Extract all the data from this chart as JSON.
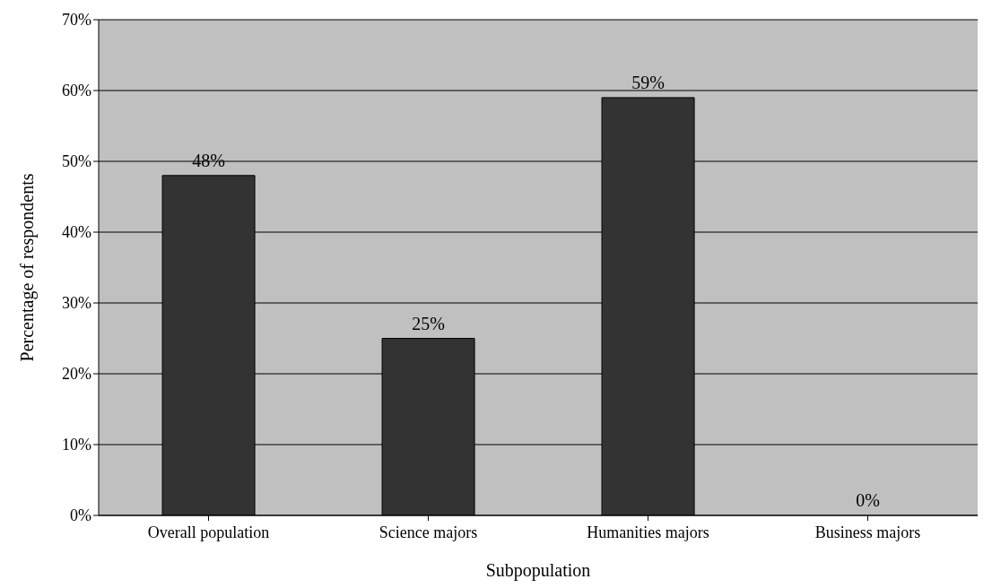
{
  "chart_data": {
    "type": "bar",
    "xlabel": "Subpopulation",
    "ylabel": "Percentage of respondents",
    "categories": [
      "Overall population",
      "Science majors",
      "Humanities majors",
      "Business majors"
    ],
    "values": [
      48,
      25,
      59,
      0
    ],
    "color": "#333333",
    "value_labels": [
      "48%",
      "25%",
      "59%",
      "0%"
    ],
    "ylim": [
      0,
      70
    ],
    "yticks": [
      {
        "value": 0,
        "label": "0%"
      },
      {
        "value": 10,
        "label": "10%"
      },
      {
        "value": 20,
        "label": "20%"
      },
      {
        "value": 30,
        "label": "30%"
      },
      {
        "value": 40,
        "label": "40%"
      },
      {
        "value": 50,
        "label": "50%"
      },
      {
        "value": 60,
        "label": "60%"
      },
      {
        "value": 70,
        "label": "70%"
      }
    ],
    "grid": "y",
    "legend": false
  }
}
